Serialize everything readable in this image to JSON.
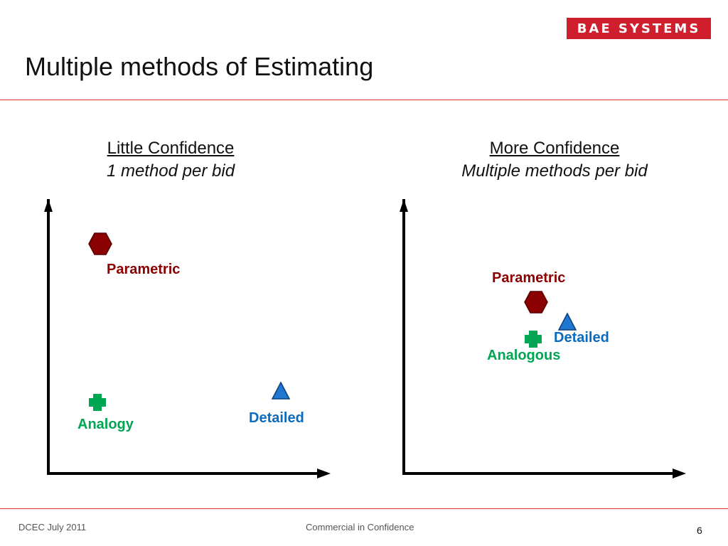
{
  "header": {
    "logo_text": "BAE SYSTEMS",
    "title": "Multiple methods of Estimating"
  },
  "left_panel": {
    "heading": "Little Confidence",
    "subheading": "1 method per bid",
    "labels": {
      "parametric": "Parametric",
      "analogy": "Analogy",
      "detailed": "Detailed"
    }
  },
  "right_panel": {
    "heading": "More Confidence",
    "subheading": "Multiple methods per bid",
    "labels": {
      "parametric": "Parametric",
      "analogous": "Analogous",
      "detailed": "Detailed"
    }
  },
  "footer": {
    "left": "DCEC July 2011",
    "center": "Commercial in Confidence",
    "page": "6"
  },
  "colors": {
    "accent": "#e0302e",
    "logo_bg": "#cf1f2e",
    "parametric": "#8b0000",
    "analogy": "#00a651",
    "detailed": "#0a6bbf"
  },
  "icons": {
    "parametric": "hexagon-icon",
    "analogy": "plus-icon",
    "detailed": "triangle-icon"
  }
}
